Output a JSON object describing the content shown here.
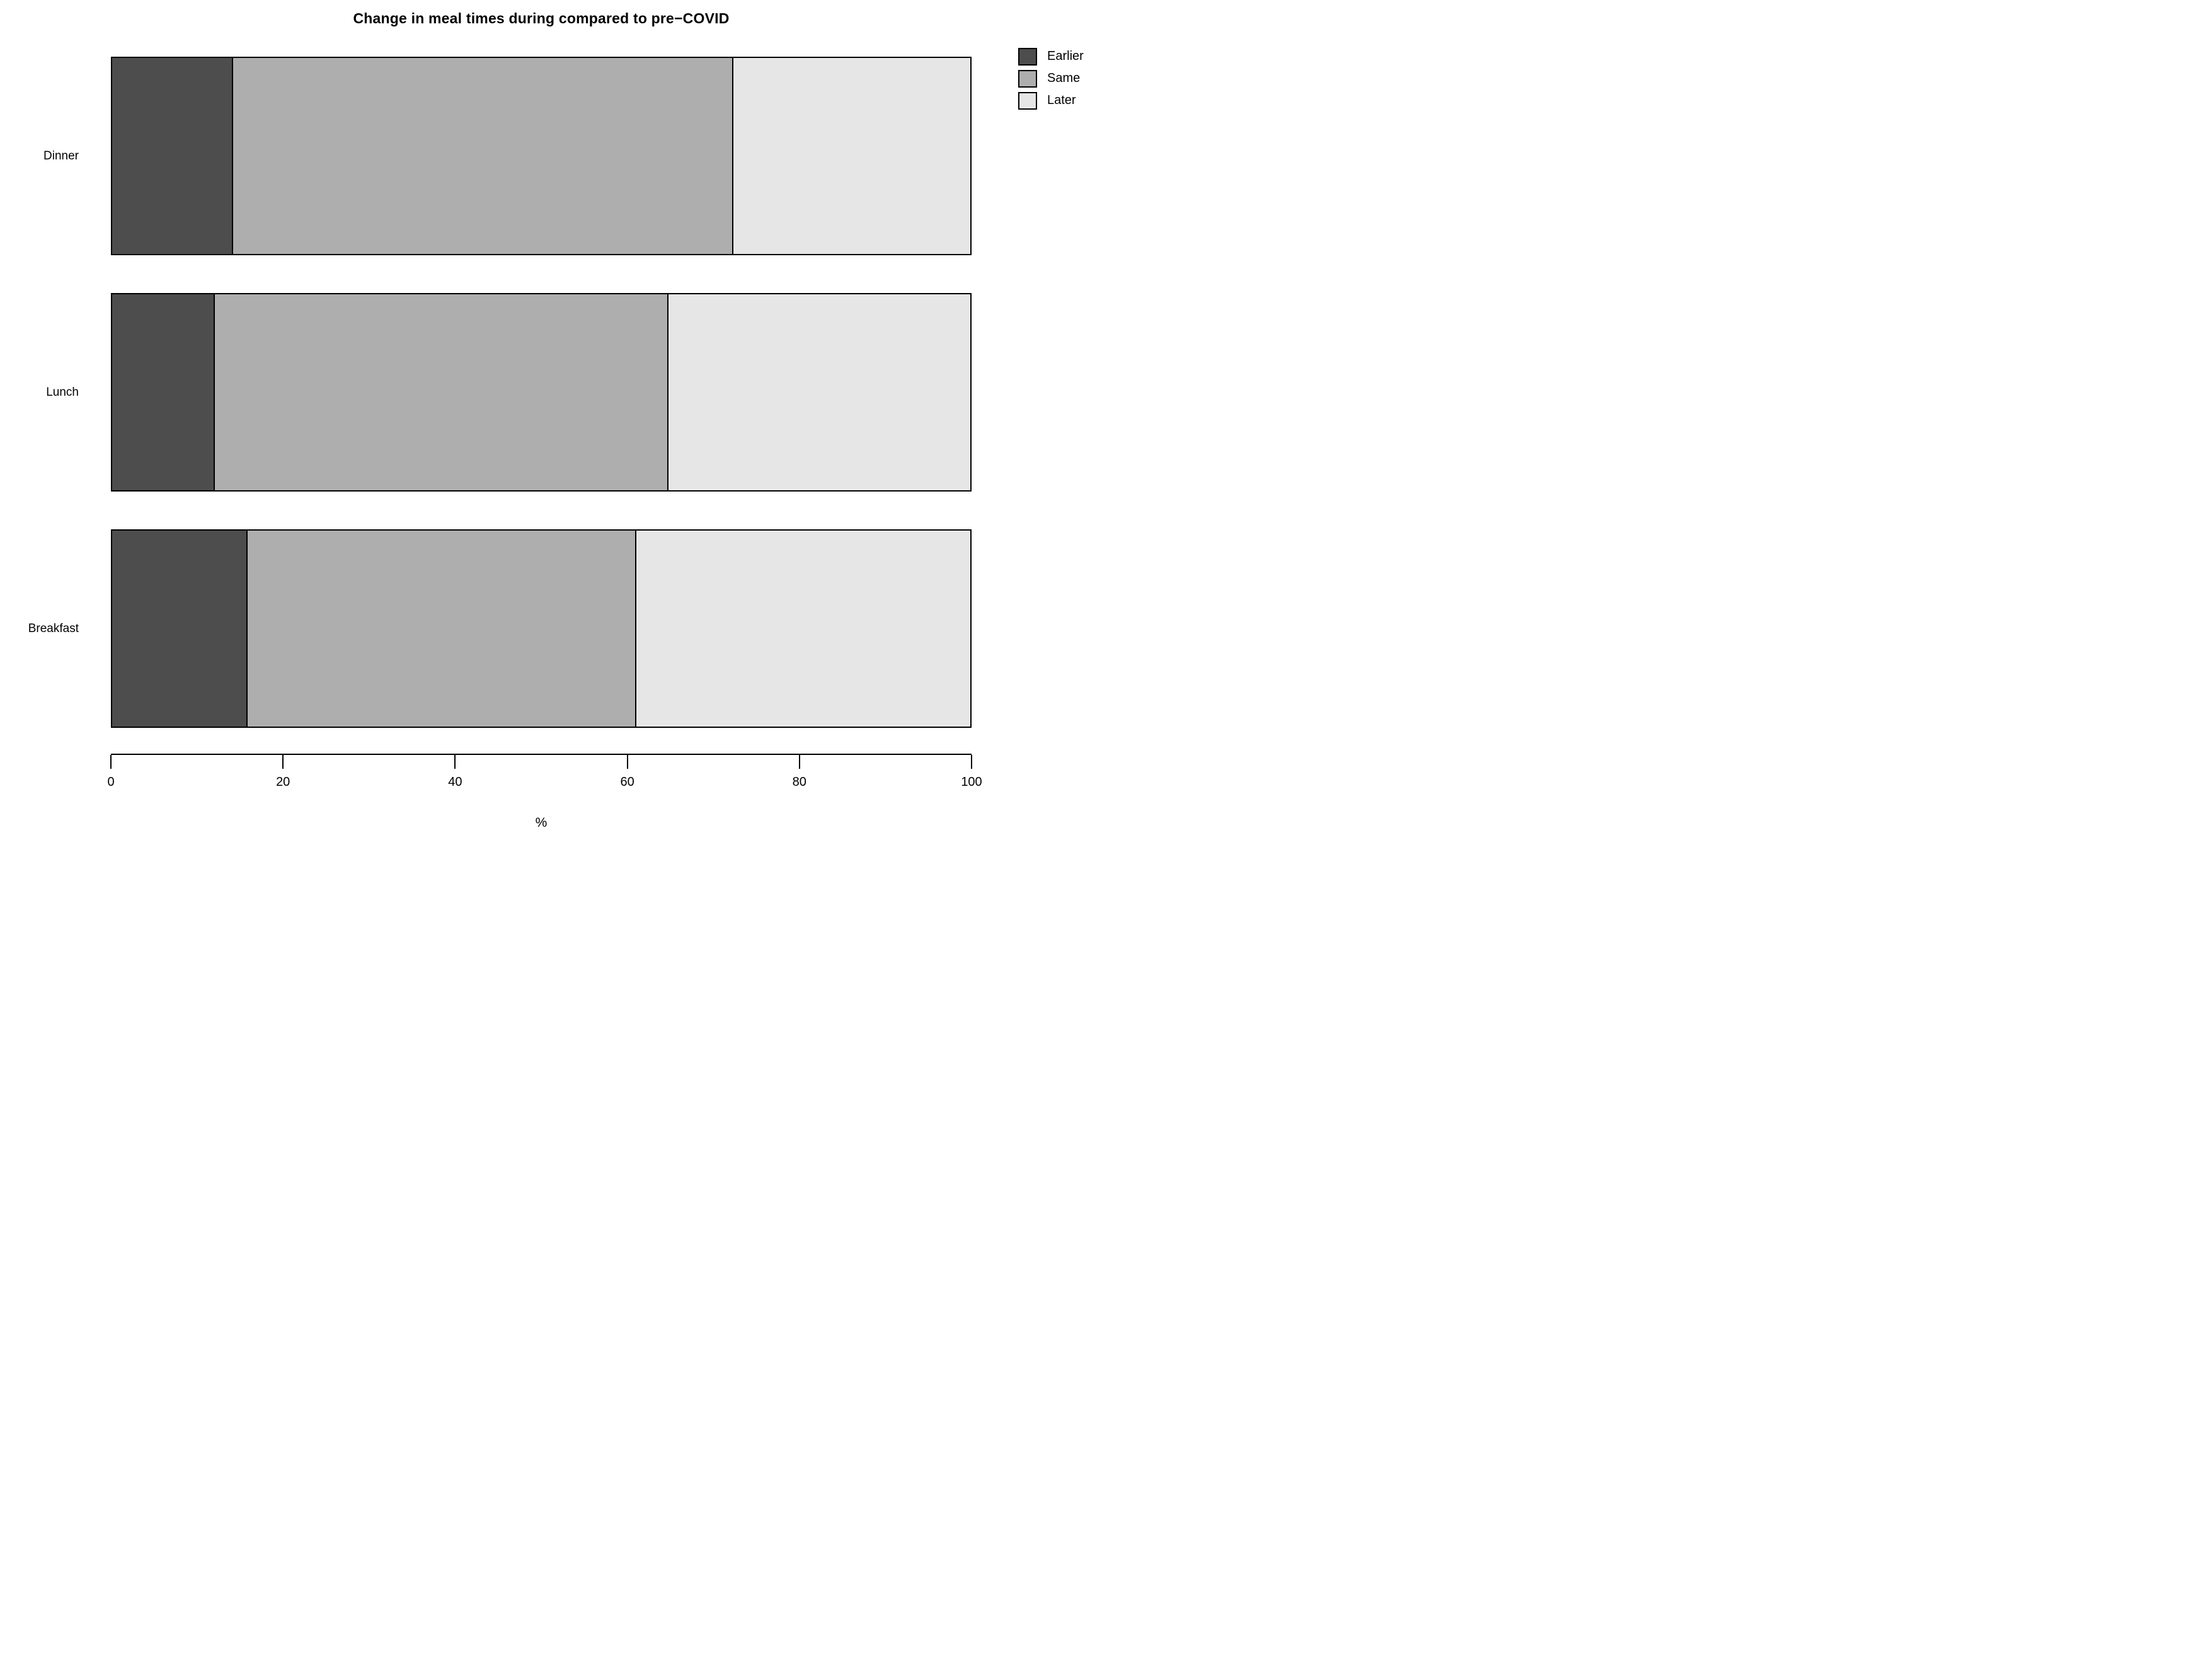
{
  "title": "Change in meal times during compared to pre−COVID",
  "colors": {
    "earlier": "#4d4d4d",
    "same": "#aeaeae",
    "later": "#e6e6e6",
    "border": "#000000",
    "background": "#ffffff"
  },
  "legend": {
    "items": [
      {
        "label": "Earlier",
        "color": "#4d4d4d"
      },
      {
        "label": "Same",
        "color": "#aeaeae"
      },
      {
        "label": "Later",
        "color": "#e6e6e6"
      }
    ]
  },
  "chart_data": {
    "type": "bar",
    "orientation": "horizontal",
    "stacked": true,
    "title": "Change in meal times during compared to pre−COVID",
    "xlabel": "%",
    "ylabel": "",
    "xlim": [
      0,
      100
    ],
    "x_ticks": [
      "0",
      "20",
      "40",
      "60",
      "80",
      "100"
    ],
    "x_tick_values": [
      0,
      20,
      40,
      60,
      80,
      100
    ],
    "grid": false,
    "legend_position": "top-right",
    "categories": [
      "Dinner",
      "Lunch",
      "Breakfast"
    ],
    "series": [
      {
        "name": "Earlier",
        "color": "#4d4d4d",
        "values": [
          14.1,
          12.0,
          15.8
        ]
      },
      {
        "name": "Same",
        "color": "#aeaeae",
        "values": [
          58.3,
          52.8,
          45.3
        ]
      },
      {
        "name": "Later",
        "color": "#e6e6e6",
        "values": [
          27.6,
          35.2,
          38.9
        ]
      }
    ]
  }
}
